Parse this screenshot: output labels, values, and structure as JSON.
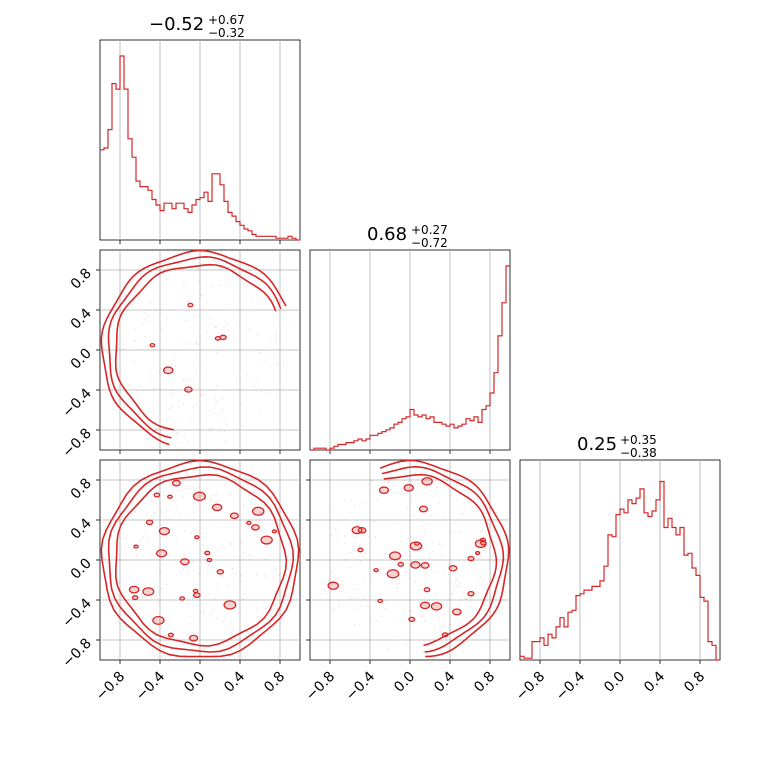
{
  "chart_data": {
    "type": "corner",
    "color": "#d62728",
    "grid": true,
    "axis_range": [
      -1.0,
      1.0
    ],
    "tick_values": [
      -0.8,
      -0.4,
      0.0,
      0.4,
      0.8
    ],
    "tick_labels": [
      "−0.8",
      "−0.4",
      "0.0",
      "0.4",
      "0.8"
    ],
    "titles": [
      {
        "median": "−0.52",
        "plus": "+0.67",
        "minus": "−0.32"
      },
      {
        "median": "0.68",
        "plus": "+0.27",
        "minus": "−0.72"
      },
      {
        "median": "0.25",
        "plus": "+0.35",
        "minus": "−0.38"
      }
    ],
    "histograms": [
      {
        "param": 0,
        "bin_start": -1.0,
        "bin_width": 0.04,
        "values": [
          0.49,
          0.5,
          0.6,
          0.85,
          0.82,
          1.0,
          0.82,
          0.55,
          0.45,
          0.32,
          0.29,
          0.29,
          0.27,
          0.22,
          0.19,
          0.16,
          0.2,
          0.2,
          0.17,
          0.2,
          0.2,
          0.17,
          0.15,
          0.19,
          0.22,
          0.23,
          0.26,
          0.21,
          0.36,
          0.36,
          0.3,
          0.21,
          0.15,
          0.13,
          0.1,
          0.08,
          0.06,
          0.05,
          0.03,
          0.02,
          0.02,
          0.02,
          0.02,
          0.02,
          0.01,
          0.01,
          0.01,
          0.02,
          0.01,
          0.0
        ]
      },
      {
        "param": 1,
        "bin_start": -1.0,
        "bin_width": 0.04,
        "values": [
          0.0,
          0.01,
          0.01,
          0.01,
          0.0,
          0.01,
          0.02,
          0.03,
          0.03,
          0.04,
          0.04,
          0.05,
          0.06,
          0.05,
          0.06,
          0.08,
          0.08,
          0.09,
          0.1,
          0.11,
          0.12,
          0.14,
          0.15,
          0.17,
          0.18,
          0.22,
          0.19,
          0.18,
          0.19,
          0.17,
          0.18,
          0.15,
          0.15,
          0.14,
          0.13,
          0.14,
          0.12,
          0.13,
          0.14,
          0.17,
          0.16,
          0.18,
          0.15,
          0.22,
          0.24,
          0.31,
          0.42,
          0.62,
          0.8,
          1.0
        ]
      },
      {
        "param": 2,
        "bin_start": -1.0,
        "bin_width": 0.04,
        "values": [
          0.02,
          0.01,
          0.01,
          0.1,
          0.1,
          0.12,
          0.08,
          0.14,
          0.12,
          0.18,
          0.23,
          0.18,
          0.26,
          0.27,
          0.35,
          0.36,
          0.38,
          0.38,
          0.4,
          0.4,
          0.43,
          0.51,
          0.68,
          0.67,
          0.79,
          0.82,
          0.8,
          0.87,
          0.85,
          0.88,
          0.93,
          0.8,
          0.78,
          0.81,
          0.87,
          0.97,
          0.72,
          0.77,
          0.72,
          0.68,
          0.72,
          0.57,
          0.58,
          0.5,
          0.46,
          0.34,
          0.32,
          0.1,
          0.08,
          0.0
        ]
      }
    ],
    "scatter_panels": [
      {
        "x_param": 0,
        "y_param": 1
      },
      {
        "x_param": 0,
        "y_param": 2
      },
      {
        "x_param": 1,
        "y_param": 2
      }
    ]
  }
}
